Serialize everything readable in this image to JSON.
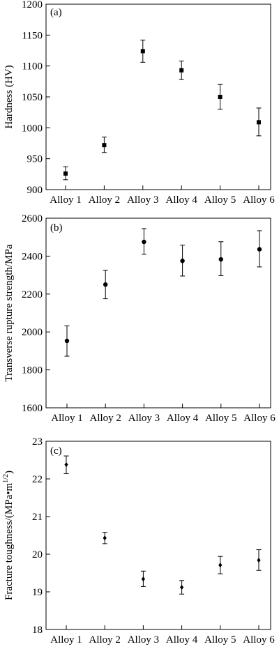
{
  "chart_data": [
    {
      "type": "scatter",
      "panel_label": "(a)",
      "marker": "square",
      "categories": [
        "Alloy 1",
        "Alloy 2",
        "Alloy 3",
        "Alloy 4",
        "Alloy 5",
        "Alloy 6"
      ],
      "values": [
        926,
        972,
        1124,
        1093,
        1050,
        1009
      ],
      "error_low": [
        916,
        960,
        1106,
        1078,
        1030,
        987
      ],
      "error_high": [
        937,
        985,
        1142,
        1108,
        1070,
        1032
      ],
      "xlabel": "",
      "ylabel": "Hardness (HV)",
      "ylim": [
        900,
        1200
      ],
      "yticks": [
        "900",
        "950",
        "1000",
        "1050",
        "1100",
        "1150",
        "1200"
      ],
      "grid": false
    },
    {
      "type": "scatter",
      "panel_label": "(b)",
      "marker": "circle",
      "categories": [
        "Alloy 1",
        "Alloy 2",
        "Alloy 3",
        "Alloy 4",
        "Alloy 5",
        "Alloy 6"
      ],
      "values": [
        1953,
        2250,
        2475,
        2375,
        2383,
        2436
      ],
      "error_low": [
        1872,
        2175,
        2410,
        2295,
        2297,
        2343
      ],
      "error_high": [
        2032,
        2326,
        2545,
        2458,
        2476,
        2534
      ],
      "xlabel": "",
      "ylabel": "Transverse rupture strength/MPa",
      "ylim": [
        1600,
        2600
      ],
      "yticks": [
        "1600",
        "1800",
        "2000",
        "2200",
        "2400",
        "2600"
      ],
      "grid": false
    },
    {
      "type": "scatter",
      "panel_label": "(c)",
      "marker": "diamond",
      "categories": [
        "Alloy 1",
        "Alloy 2",
        "Alloy 3",
        "Alloy 4",
        "Alloy 5",
        "Alloy 6"
      ],
      "values": [
        22.38,
        20.43,
        19.34,
        19.12,
        19.71,
        19.84
      ],
      "error_low": [
        22.14,
        20.28,
        19.14,
        18.94,
        19.48,
        19.57
      ],
      "error_high": [
        22.61,
        20.58,
        19.55,
        19.3,
        19.94,
        20.12
      ],
      "xlabel": "",
      "ylabel_main": "Fracture toughness/(MPa•m",
      "ylabel_sup": "1/2",
      "ylabel_close": ")",
      "ylim": [
        18,
        23
      ],
      "yticks": [
        "18",
        "19",
        "20",
        "21",
        "22",
        "23"
      ],
      "grid": false
    }
  ]
}
